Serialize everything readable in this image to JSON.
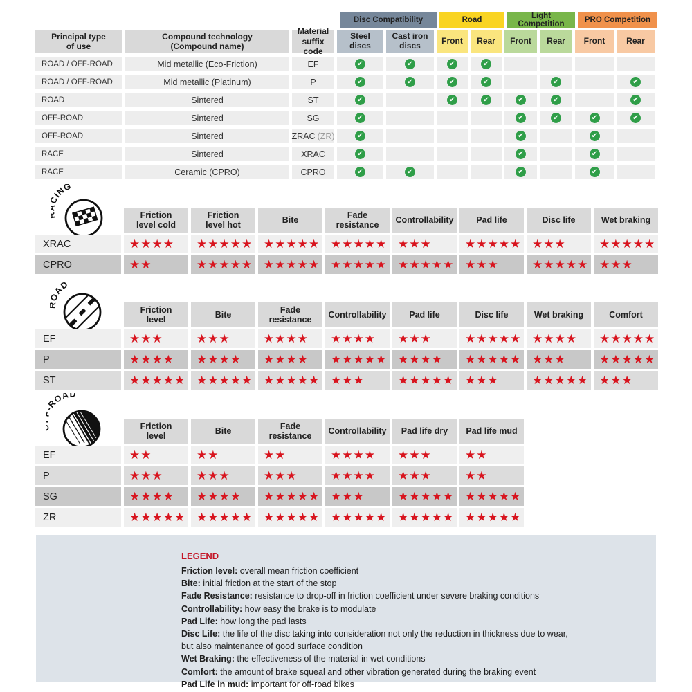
{
  "colors": {
    "star_red": "#d8141e",
    "check_green": "#2f9e48",
    "legend_title_red": "#c41425",
    "header_gray": "#d9d9d9",
    "cell_gray": "#ededed",
    "row_light": "#efefef",
    "row_mid": "#dcdcdc",
    "row_dark": "#c8c8c8",
    "legend_bg": "#dde3e9"
  },
  "compat_table": {
    "main_headers": [
      {
        "label": "Principal type\nof use"
      },
      {
        "label": "Compound technology\n(Compound name)"
      },
      {
        "label": "Material\nsuffix code"
      }
    ],
    "groups": [
      {
        "label": "Disc Compatibility",
        "header_color": "#76879a",
        "sub_color": "#b6c0ca",
        "subs": [
          "Steel\ndiscs",
          "Cast iron\ndiscs"
        ]
      },
      {
        "label": "Road",
        "header_color": "#f9d423",
        "sub_color": "#fae57e",
        "subs": [
          "Front",
          "Rear"
        ]
      },
      {
        "label": "Light Competition",
        "header_color": "#79b64a",
        "sub_color": "#bad99b",
        "subs": [
          "Front",
          "Rear"
        ]
      },
      {
        "label": "PRO Competition",
        "header_color": "#f0914b",
        "sub_color": "#f8c9a3",
        "subs": [
          "Front",
          "Rear"
        ]
      }
    ],
    "rows": [
      {
        "use": "ROAD / OFF-ROAD",
        "tech": "Mid metallic (Eco-Friction)",
        "code": "EF",
        "code_note": "",
        "checks": [
          1,
          1,
          1,
          1,
          0,
          0,
          0,
          0
        ]
      },
      {
        "use": "ROAD / OFF-ROAD",
        "tech": "Mid metallic (Platinum)",
        "code": "P",
        "code_note": "",
        "checks": [
          1,
          1,
          1,
          1,
          0,
          1,
          0,
          1
        ]
      },
      {
        "use": "ROAD",
        "tech": "Sintered",
        "code": "ST",
        "code_note": "",
        "checks": [
          1,
          0,
          1,
          1,
          1,
          1,
          0,
          1
        ]
      },
      {
        "use": "OFF-ROAD",
        "tech": "Sintered",
        "code": "SG",
        "code_note": "",
        "checks": [
          1,
          0,
          0,
          0,
          1,
          1,
          1,
          1
        ]
      },
      {
        "use": "OFF-ROAD",
        "tech": "Sintered",
        "code": "ZRAC",
        "code_note": "(ZR)",
        "checks": [
          1,
          0,
          0,
          0,
          1,
          0,
          1,
          0
        ]
      },
      {
        "use": "RACE",
        "tech": "Sintered",
        "code": "XRAC",
        "code_note": "",
        "checks": [
          1,
          0,
          0,
          0,
          1,
          0,
          1,
          0
        ]
      },
      {
        "use": "RACE",
        "tech": "Ceramic (CPRO)",
        "code": "CPRO",
        "code_note": "",
        "checks": [
          1,
          1,
          0,
          0,
          1,
          0,
          1,
          0
        ]
      }
    ]
  },
  "rating_sections": [
    {
      "id": "racing",
      "icon_label": "RACING",
      "columns": [
        "Friction\nlevel cold",
        "Friction\nlevel hot",
        "Bite",
        "Fade\nresistance",
        "Controllability",
        "Pad life",
        "Disc life",
        "Wet braking"
      ],
      "rows": [
        {
          "label": "XRAC",
          "shade": "light",
          "stars": [
            4,
            5,
            5,
            5,
            3,
            5,
            3,
            5
          ]
        },
        {
          "label": "CPRO",
          "shade": "dark",
          "stars": [
            2,
            5,
            5,
            5,
            5,
            3,
            5,
            3
          ]
        }
      ]
    },
    {
      "id": "road",
      "icon_label": "ROAD",
      "columns": [
        "Friction\nlevel",
        "Bite",
        "Fade\nresistance",
        "Controllability",
        "Pad life",
        "Disc life",
        "Wet braking",
        "Comfort"
      ],
      "rows": [
        {
          "label": "EF",
          "shade": "light",
          "stars": [
            3,
            3,
            4,
            4,
            3,
            5,
            4,
            5
          ]
        },
        {
          "label": "P",
          "shade": "dark",
          "stars": [
            4,
            4,
            4,
            5,
            4,
            5,
            3,
            5
          ]
        },
        {
          "label": "ST",
          "shade": "mid",
          "stars": [
            5,
            5,
            5,
            3,
            5,
            3,
            5,
            3
          ]
        }
      ]
    },
    {
      "id": "offroad",
      "icon_label": "OFF-ROAD",
      "columns": [
        "Friction\nlevel",
        "Bite",
        "Fade\nresistance",
        "Controllability",
        "Pad life dry",
        "Pad life mud"
      ],
      "rows": [
        {
          "label": "EF",
          "shade": "light",
          "stars": [
            2,
            2,
            2,
            4,
            3,
            2
          ]
        },
        {
          "label": "P",
          "shade": "mid",
          "stars": [
            3,
            3,
            3,
            4,
            3,
            2
          ]
        },
        {
          "label": "SG",
          "shade": "dark",
          "stars": [
            4,
            4,
            5,
            3,
            5,
            5
          ]
        },
        {
          "label": "ZR",
          "shade": "light",
          "stars": [
            5,
            5,
            5,
            5,
            5,
            5
          ]
        }
      ]
    }
  ],
  "legend": {
    "title": "LEGEND",
    "items": [
      {
        "term": "Friction level",
        "desc": "overall mean friction coefficient"
      },
      {
        "term": "Bite",
        "desc": "initial friction at the start of the stop"
      },
      {
        "term": "Fade Resistance",
        "desc": "resistance to drop-off in friction coefficient under severe braking conditions"
      },
      {
        "term": "Controllability",
        "desc": "how easy the brake is to modulate"
      },
      {
        "term": "Pad Life",
        "desc": "how long the pad lasts"
      },
      {
        "term": "Disc Life",
        "desc": "the life of the disc taking into consideration not only the reduction in thickness due to wear,"
      },
      {
        "term": "",
        "desc": "but also maintenance of good surface condition"
      },
      {
        "term": "Wet Braking",
        "desc": "the effectiveness of the material in wet conditions"
      },
      {
        "term": "Comfort",
        "desc": "the amount of brake squeal and other vibration generated during the braking event"
      },
      {
        "term": "Pad Life in mud",
        "desc": "important for off-road bikes"
      }
    ]
  }
}
